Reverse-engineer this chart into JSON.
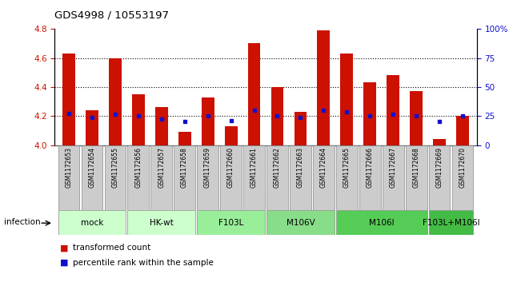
{
  "title": "GDS4998 / 10553197",
  "samples": [
    "GSM1172653",
    "GSM1172654",
    "GSM1172655",
    "GSM1172656",
    "GSM1172657",
    "GSM1172658",
    "GSM1172659",
    "GSM1172660",
    "GSM1172661",
    "GSM1172662",
    "GSM1172663",
    "GSM1172664",
    "GSM1172665",
    "GSM1172666",
    "GSM1172667",
    "GSM1172668",
    "GSM1172669",
    "GSM1172670"
  ],
  "transformed_counts": [
    4.63,
    4.24,
    4.6,
    4.35,
    4.26,
    4.09,
    4.33,
    4.13,
    4.7,
    4.4,
    4.23,
    4.79,
    4.63,
    4.43,
    4.48,
    4.37,
    4.04,
    4.2
  ],
  "percentile_ranks": [
    4.22,
    4.19,
    4.21,
    4.2,
    4.18,
    4.16,
    4.2,
    4.17,
    4.24,
    4.2,
    4.19,
    4.24,
    4.23,
    4.2,
    4.21,
    4.2,
    4.16,
    4.2
  ],
  "groups": [
    {
      "label": "mock",
      "indices": [
        0,
        1,
        2
      ],
      "color": "#ccffcc"
    },
    {
      "label": "HK-wt",
      "indices": [
        3,
        4,
        5
      ],
      "color": "#ccffcc"
    },
    {
      "label": "F103L",
      "indices": [
        6,
        7,
        8
      ],
      "color": "#99ee99"
    },
    {
      "label": "M106V",
      "indices": [
        9,
        10,
        11
      ],
      "color": "#88dd88"
    },
    {
      "label": "M106I",
      "indices": [
        12,
        13,
        14,
        15
      ],
      "color": "#55cc55"
    },
    {
      "label": "F103L+M106I",
      "indices": [
        16,
        17
      ],
      "color": "#44bb44"
    }
  ],
  "ylim_left": [
    4.0,
    4.8
  ],
  "ylim_right": [
    0,
    100
  ],
  "yticks_left": [
    4.0,
    4.2,
    4.4,
    4.6,
    4.8
  ],
  "yticks_right": [
    0,
    25,
    50,
    75,
    100
  ],
  "grid_lines": [
    4.2,
    4.4,
    4.6
  ],
  "bar_color": "#cc1100",
  "dot_color": "#1111cc",
  "bar_width": 0.55,
  "bar_baseline": 4.0,
  "legend_items": [
    "transformed count",
    "percentile rank within the sample"
  ],
  "infection_label": "infection",
  "sample_box_color": "#cccccc",
  "sample_box_edge": "#888888"
}
